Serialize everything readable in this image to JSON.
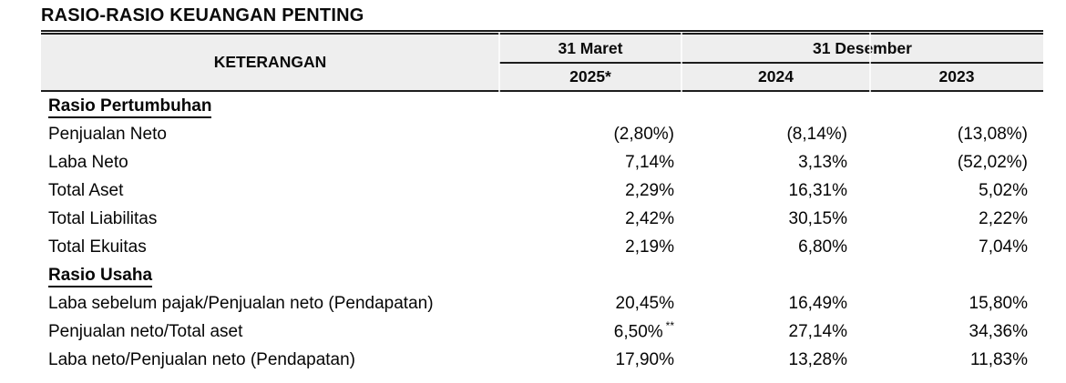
{
  "title": "RASIO-RASIO KEUANGAN PENTING",
  "colors": {
    "header_band": "#eeeeee",
    "rule": "#1d1d1d",
    "text": "#000000"
  },
  "table": {
    "keterangan": "KETERANGAN",
    "maret": {
      "label": "31 Maret",
      "year": "2025*"
    },
    "desember": {
      "label": "31 Desember",
      "year1": "2024",
      "year2": "2023"
    },
    "rows": [
      {
        "type": "section",
        "label": "Rasio Pertumbuhan"
      },
      {
        "type": "data",
        "label": "Penjualan Neto",
        "v1": "(2,80%)",
        "v2": "(8,14%)",
        "v3": "(13,08%)"
      },
      {
        "type": "data",
        "label": "Laba Neto",
        "v1": "7,14%",
        "v2": "3,13%",
        "v3": "(52,02%)"
      },
      {
        "type": "data",
        "label": "Total Aset",
        "v1": "2,29%",
        "v2": "16,31%",
        "v3": "5,02%"
      },
      {
        "type": "data",
        "label": "Total Liabilitas",
        "v1": "2,42%",
        "v2": "30,15%",
        "v3": "2,22%"
      },
      {
        "type": "data",
        "label": "Total Ekuitas",
        "v1": "2,19%",
        "v2": "6,80%",
        "v3": "7,04%"
      },
      {
        "type": "section",
        "label": "Rasio Usaha"
      },
      {
        "type": "data",
        "label": "Laba sebelum pajak/Penjualan neto (Pendapatan)",
        "v1": "20,45%",
        "v2": "16,49%",
        "v3": "15,80%"
      },
      {
        "type": "data",
        "label": "Penjualan neto/Total aset",
        "v1": "6,50%",
        "v1_sup": "**",
        "v2": "27,14%",
        "v3": "34,36%"
      },
      {
        "type": "data",
        "label": "Laba neto/Penjualan neto (Pendapatan)",
        "v1": "17,90%",
        "v2": "13,28%",
        "v3": "11,83%"
      }
    ]
  }
}
